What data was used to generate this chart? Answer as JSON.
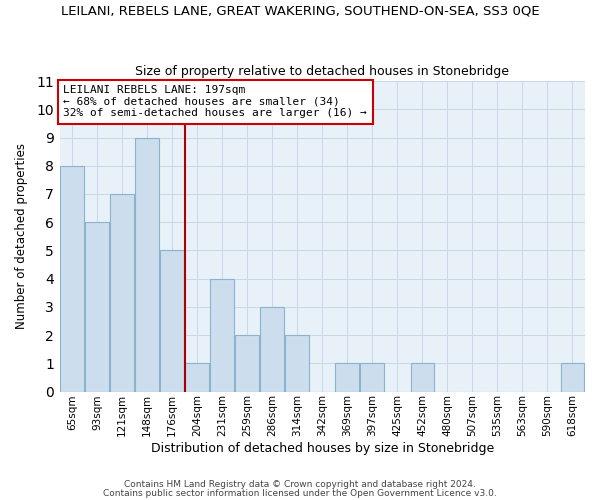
{
  "title": "LEILANI, REBELS LANE, GREAT WAKERING, SOUTHEND-ON-SEA, SS3 0QE",
  "subtitle": "Size of property relative to detached houses in Stonebridge",
  "xlabel": "Distribution of detached houses by size in Stonebridge",
  "ylabel": "Number of detached properties",
  "bin_labels": [
    "65sqm",
    "93sqm",
    "121sqm",
    "148sqm",
    "176sqm",
    "204sqm",
    "231sqm",
    "259sqm",
    "286sqm",
    "314sqm",
    "342sqm",
    "369sqm",
    "397sqm",
    "425sqm",
    "452sqm",
    "480sqm",
    "507sqm",
    "535sqm",
    "563sqm",
    "590sqm",
    "618sqm"
  ],
  "bar_heights": [
    8,
    6,
    7,
    9,
    5,
    1,
    4,
    2,
    3,
    2,
    0,
    1,
    1,
    0,
    1,
    0,
    0,
    0,
    0,
    0,
    1
  ],
  "bar_color": "#ccdded",
  "bar_edge_color": "#8ab4cc",
  "highlight_line_color": "#aa0000",
  "ylim": [
    0,
    11
  ],
  "yticks": [
    0,
    1,
    2,
    3,
    4,
    5,
    6,
    7,
    8,
    9,
    10,
    11
  ],
  "annotation_title": "LEILANI REBELS LANE: 197sqm",
  "annotation_line1": "← 68% of detached houses are smaller (34)",
  "annotation_line2": "32% of semi-detached houses are larger (16) →",
  "footer1": "Contains HM Land Registry data © Crown copyright and database right 2024.",
  "footer2": "Contains public sector information licensed under the Open Government Licence v3.0.",
  "grid_color": "#c8d8e8",
  "background_color": "#e8f0f8"
}
